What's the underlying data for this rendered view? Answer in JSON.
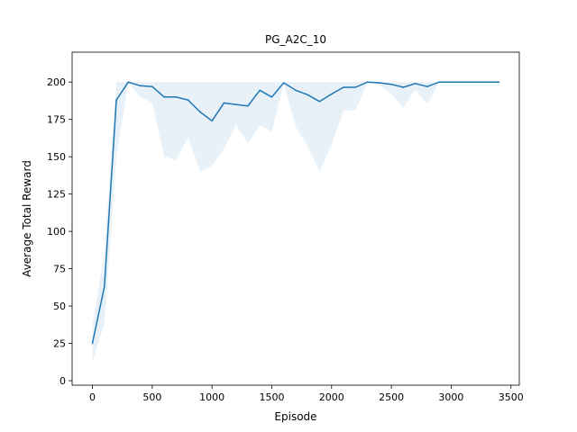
{
  "chart_data": {
    "type": "line",
    "title": "PG_A2C_10",
    "xlabel": "Episode",
    "ylabel": "Average Total Reward",
    "xlim": [
      -170,
      3570
    ],
    "ylim": [
      -3,
      220
    ],
    "xticks": [
      0,
      500,
      1000,
      1500,
      2000,
      2500,
      3000,
      3500
    ],
    "yticks": [
      0,
      25,
      50,
      75,
      100,
      125,
      150,
      175,
      200
    ],
    "grid": false,
    "legend": "none",
    "colors": {
      "line": "#1f77b4",
      "band": "#1f77b4"
    },
    "series": [
      {
        "x": [
          0,
          100,
          200,
          300,
          400,
          500,
          600,
          700,
          800,
          900,
          1000,
          1100,
          1200,
          1300,
          1400,
          1500,
          1600,
          1700,
          1800,
          1900,
          2000,
          2100,
          2200,
          2300,
          2400,
          2500,
          2600,
          2700,
          2800,
          2900,
          3000,
          3100,
          3200,
          3300,
          3400
        ],
        "y": [
          25,
          63,
          188,
          200,
          197.5,
          197,
          190,
          190,
          188,
          180,
          174,
          186,
          185,
          184,
          194.5,
          190,
          199.5,
          194.5,
          191.5,
          187,
          192,
          196.5,
          196.5,
          200,
          199.5,
          198.5,
          196.5,
          199,
          197,
          200,
          200,
          200,
          200,
          200,
          200
        ],
        "lower": [
          13,
          38,
          150,
          200,
          190,
          186,
          150,
          148,
          163,
          140,
          144,
          155,
          171,
          159,
          171,
          167,
          199,
          170,
          157,
          140,
          158,
          181,
          181,
          200,
          198,
          192,
          183,
          195,
          185,
          200,
          200,
          200,
          200,
          200,
          200
        ],
        "upper": [
          37,
          85,
          200,
          200,
          200,
          200,
          200,
          200,
          200,
          200,
          200,
          200,
          200,
          200,
          200,
          200,
          200,
          200,
          200,
          200,
          200,
          200,
          200,
          200,
          200,
          200,
          200,
          200,
          200,
          200,
          200,
          200,
          200,
          200,
          200
        ]
      }
    ]
  }
}
